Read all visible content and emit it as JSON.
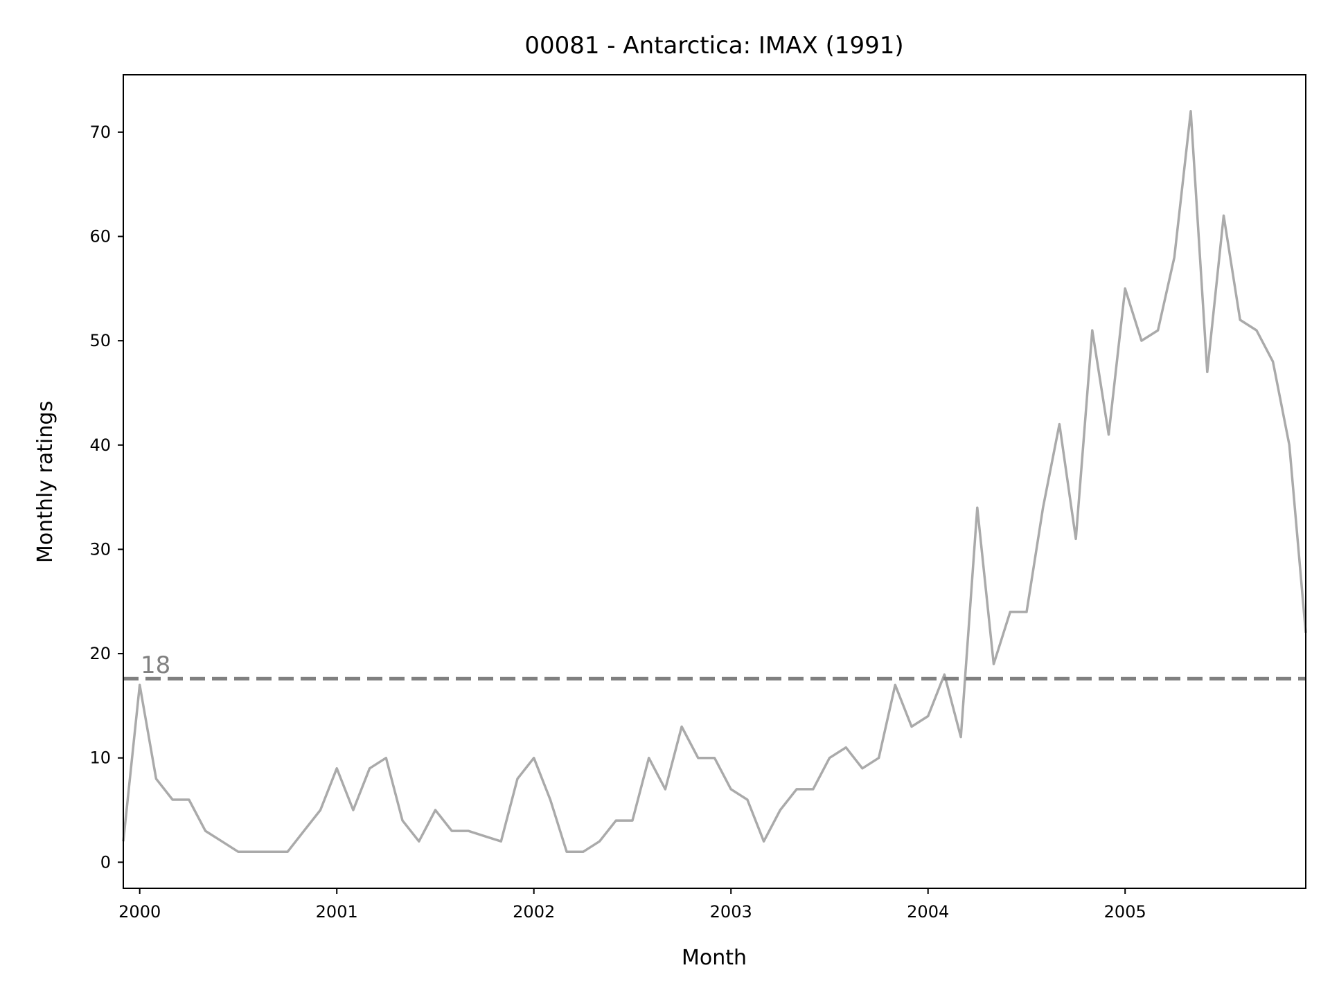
{
  "chart_data": {
    "type": "line",
    "title": "00081 - Antarctica: IMAX (1991)",
    "xlabel": "Month",
    "ylabel": "Monthly ratings",
    "x_ticks": [
      "2000",
      "2001",
      "2002",
      "2003",
      "2004",
      "2005"
    ],
    "y_ticks": [
      0,
      10,
      20,
      30,
      40,
      50,
      60,
      70
    ],
    "xlim": [
      "1999-12",
      "2005-12"
    ],
    "ylim": [
      -2.5,
      75.5
    ],
    "grid": false,
    "line_color": "#aaaaaa",
    "reference_line": {
      "value": 17.6,
      "label": "18",
      "style": "dashed",
      "color": "#808080"
    },
    "series": [
      {
        "x": [
          "1999-12",
          "2000-01",
          "2000-02",
          "2000-03",
          "2000-04",
          "2000-05",
          "2000-06",
          "2000-07",
          "2000-08",
          "2000-09",
          "2000-10",
          "2000-11",
          "2000-12",
          "2001-01",
          "2001-02",
          "2001-03",
          "2001-04",
          "2001-05",
          "2001-06",
          "2001-07",
          "2001-08",
          "2001-09",
          "2001-10",
          "2001-11",
          "2001-12",
          "2002-01",
          "2002-02",
          "2002-03",
          "2002-04",
          "2002-05",
          "2002-06",
          "2002-07",
          "2002-08",
          "2002-09",
          "2002-10",
          "2002-11",
          "2002-12",
          "2003-01",
          "2003-02",
          "2003-03",
          "2003-04",
          "2003-05",
          "2003-06",
          "2003-07",
          "2003-08",
          "2003-09",
          "2003-10",
          "2003-11",
          "2003-12",
          "2004-01",
          "2004-02",
          "2004-03",
          "2004-04",
          "2004-05",
          "2004-06",
          "2004-07",
          "2004-08",
          "2004-09",
          "2004-10",
          "2004-11",
          "2004-12",
          "2005-01",
          "2005-02",
          "2005-03",
          "2005-04",
          "2005-05",
          "2005-06",
          "2005-07",
          "2005-08",
          "2005-09",
          "2005-10",
          "2005-11",
          "2005-12"
        ],
        "values": [
          2,
          17,
          8,
          6,
          6,
          3,
          2,
          1,
          1,
          1,
          1,
          3,
          5,
          9,
          5,
          9,
          10,
          4,
          2,
          5,
          3,
          3,
          2.5,
          2,
          8,
          10,
          6,
          1,
          1,
          2,
          4,
          4,
          10,
          7,
          13,
          10,
          10,
          7,
          6,
          2,
          5,
          7,
          7,
          10,
          11,
          9,
          10,
          17,
          13,
          14,
          18,
          12,
          34,
          19,
          24,
          24,
          34,
          42,
          31,
          51,
          41,
          55,
          50,
          51,
          58,
          72,
          47,
          62,
          52,
          51,
          48,
          40,
          22
        ]
      }
    ]
  }
}
